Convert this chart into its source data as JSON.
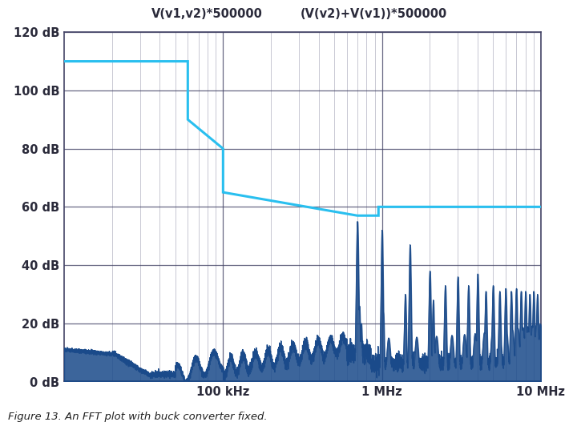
{
  "title1": "V(v1,v2)*500000",
  "title2": "(V(v2)+V(v1))*500000",
  "caption": "Figure 13. An FFT plot with buck converter fixed.",
  "xmin": 10000,
  "xmax": 10000000,
  "ymin": 0,
  "ymax": 120,
  "yticks": [
    0,
    20,
    40,
    60,
    80,
    100,
    120
  ],
  "ytick_labels": [
    "0 dB",
    "20 dB",
    "40 dB",
    "60 dB",
    "80 dB",
    "100 dB",
    "120 dB"
  ],
  "xtick_locs": [
    100000,
    1000000,
    10000000
  ],
  "xtick_labels": [
    "100 kHz",
    "1 MHz",
    "10 MHz"
  ],
  "cyan_color": "#29BFEF",
  "dark_blue_color": "#1A4A8A",
  "fill_blue_color": "#1A4A8A",
  "bg_color": "#FFFFFF",
  "grid_major_color": "#444466",
  "grid_minor_color": "#555577",
  "tick_label_color": "#2a2a3a",
  "title_color": "#2a2a3a",
  "caption_color": "#222222"
}
